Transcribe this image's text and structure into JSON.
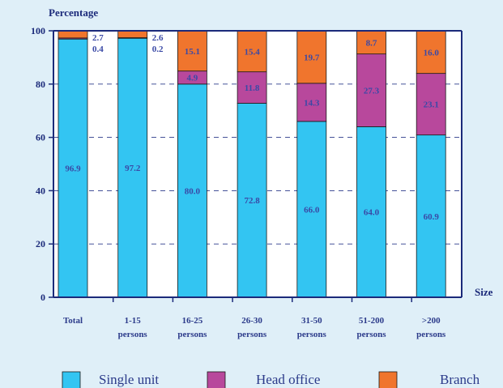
{
  "chart_data": {
    "type": "bar",
    "stacked": true,
    "title": "",
    "ylabel": "Percentage",
    "xlabel": "Size",
    "ylim": [
      0,
      100
    ],
    "yticks": [
      0,
      20,
      40,
      60,
      80,
      100
    ],
    "grid": "dashed horizontal",
    "legend_position": "bottom",
    "categories": [
      [
        "Total"
      ],
      [
        "1-15",
        "persons"
      ],
      [
        "16-25",
        "persons"
      ],
      [
        "26-30",
        "persons"
      ],
      [
        "31-50",
        "persons"
      ],
      [
        "51-200",
        "persons"
      ],
      [
        ">200",
        "persons"
      ]
    ],
    "series": [
      {
        "name": "Single unit",
        "color": "#33c5f2",
        "values": [
          96.9,
          97.2,
          80.0,
          72.8,
          66.0,
          64.0,
          60.9
        ],
        "labels": [
          "96.9",
          "97.2",
          "80.0",
          "72.8",
          "66.0",
          "64.0",
          "60.9"
        ]
      },
      {
        "name": "Head office",
        "color": "#b8489c",
        "values": [
          0.4,
          0.2,
          4.9,
          11.8,
          14.3,
          27.3,
          23.1
        ],
        "labels": [
          "0.4",
          "0.2",
          "4.9",
          "11.8",
          "14.3",
          "27.3",
          "23.1"
        ]
      },
      {
        "name": "Branch",
        "color": "#f0752d",
        "values": [
          2.7,
          2.6,
          15.1,
          15.4,
          19.7,
          8.7,
          16.0
        ],
        "labels": [
          "2.7",
          "2.6",
          "15.1",
          "15.4",
          "19.7",
          "8.7",
          "16.0"
        ]
      }
    ],
    "plot_background": "#ffffff",
    "axis_color": "#1b2a7a"
  }
}
